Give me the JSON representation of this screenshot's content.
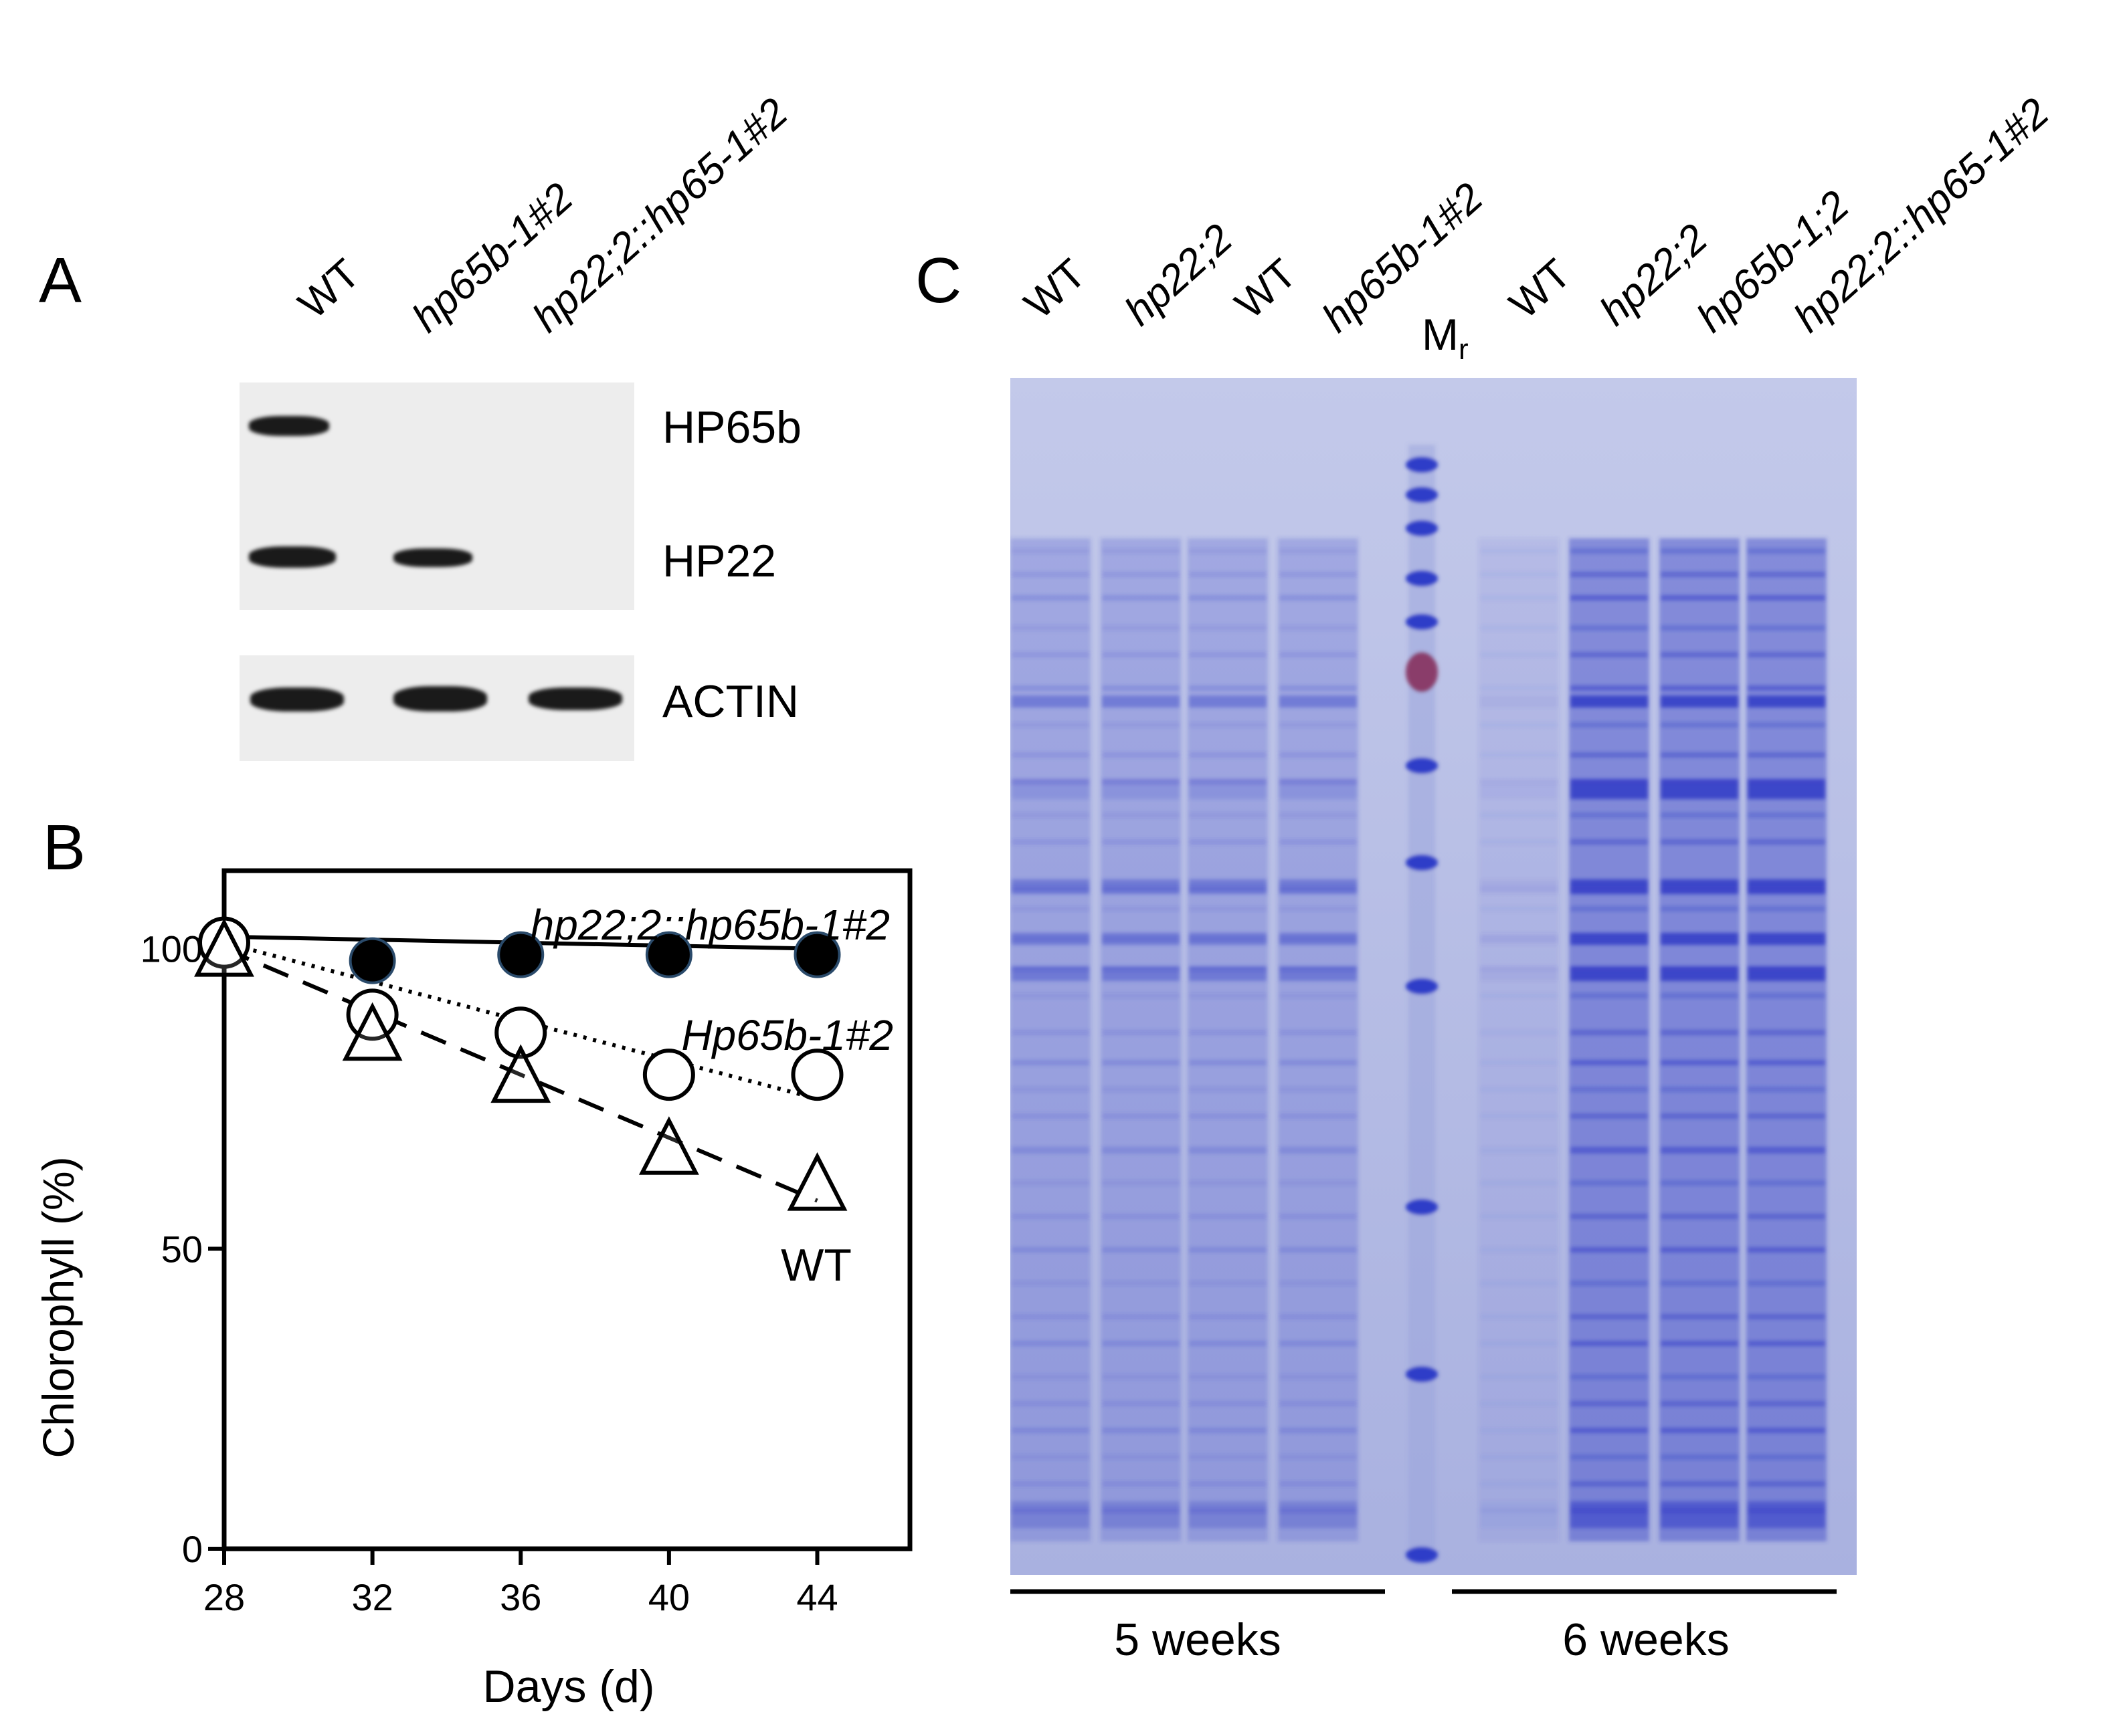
{
  "panelA": {
    "letter": "A",
    "lanes": [
      "WT",
      "hp65b-1#2",
      "hp22;2::hp65-1#2"
    ],
    "blot_labels": [
      "HP65b",
      "HP22",
      "ACTIN"
    ]
  },
  "panelB": {
    "letter": "B"
  },
  "panelC": {
    "letter": "C",
    "lanes": [
      "WT",
      "hp22;2",
      "WT",
      "hp65b-1#2",
      "Mr",
      "WT",
      "hp22;2",
      "hp65b-1;2",
      "hp22;2::hp65-1#2"
    ],
    "groups": [
      "5 weeks",
      "6 weeks"
    ],
    "gel_color": "#b9bfe6",
    "band_color": "#3a44c8"
  },
  "chart_data": {
    "type": "line",
    "xlabel": "Days (d)",
    "ylabel": "Chlorophyll (%)",
    "xticks": [
      28,
      32,
      36,
      40,
      44
    ],
    "yticks": [
      0,
      50,
      100
    ],
    "xlim": [
      28,
      46.5
    ],
    "ylim": [
      0,
      113
    ],
    "series": [
      {
        "name": "hp22;2::hp65b-1#2",
        "marker": "filled-circle",
        "line": "solid",
        "points": [
          [
            28,
            101
          ],
          [
            32,
            98
          ],
          [
            36,
            99
          ],
          [
            40,
            99
          ],
          [
            44,
            99
          ]
        ],
        "fit": [
          [
            28,
            102
          ],
          [
            44,
            100
          ]
        ]
      },
      {
        "name": "Hp65b-1#2",
        "marker": "open-circle",
        "line": "dotted",
        "points": [
          [
            28,
            101
          ],
          [
            32,
            89
          ],
          [
            36,
            86
          ],
          [
            40,
            79
          ],
          [
            44,
            79
          ]
        ],
        "fit": [
          [
            28,
            101
          ],
          [
            44,
            75
          ]
        ]
      },
      {
        "name": "WT",
        "marker": "open-triangle",
        "line": "dashed",
        "points": [
          [
            28,
            100
          ],
          [
            32,
            86
          ],
          [
            36,
            79
          ],
          [
            40,
            67
          ],
          [
            44,
            61
          ]
        ],
        "fit": [
          [
            28,
            100
          ],
          [
            44,
            58
          ]
        ]
      }
    ]
  }
}
